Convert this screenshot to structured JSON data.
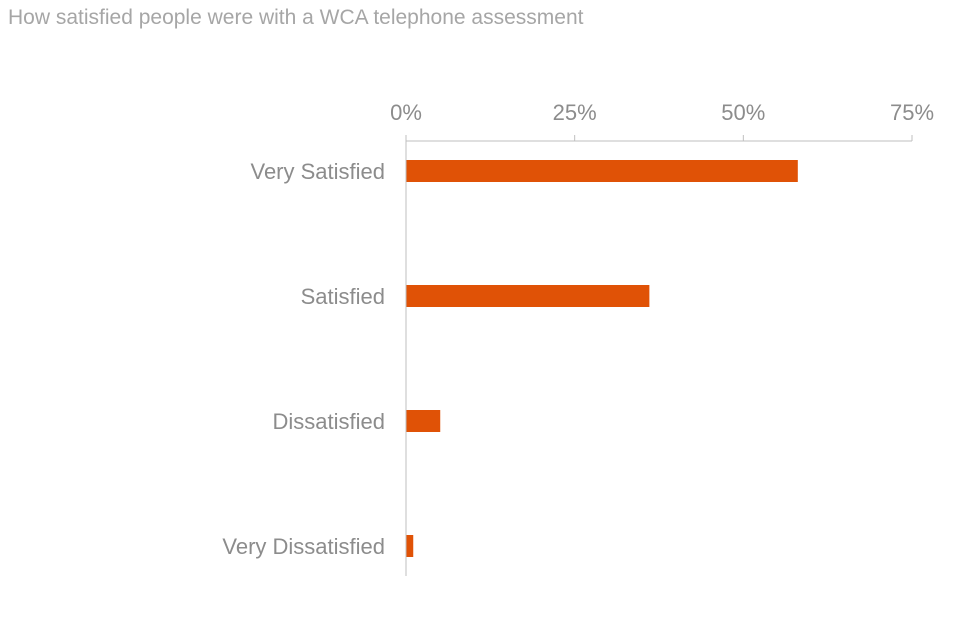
{
  "chart_data": {
    "type": "bar",
    "orientation": "horizontal",
    "title": "How satisfied people were with a WCA telephone assessment",
    "categories": [
      "Very Satisfied",
      "Satisfied",
      "Dissatisfied",
      "Very Dissatisfied"
    ],
    "values": [
      58,
      36,
      5,
      1
    ],
    "value_unit": "%",
    "xlim": [
      0,
      75
    ],
    "xticks": [
      0,
      25,
      50,
      75
    ],
    "xtick_labels": [
      "0%",
      "25%",
      "50%",
      "75%"
    ],
    "axis_position": "top",
    "grid": false,
    "legend": "none",
    "bar_color": "#e05206",
    "text_color": "#8c8c8c",
    "axis_color": "#bfbfbf"
  }
}
